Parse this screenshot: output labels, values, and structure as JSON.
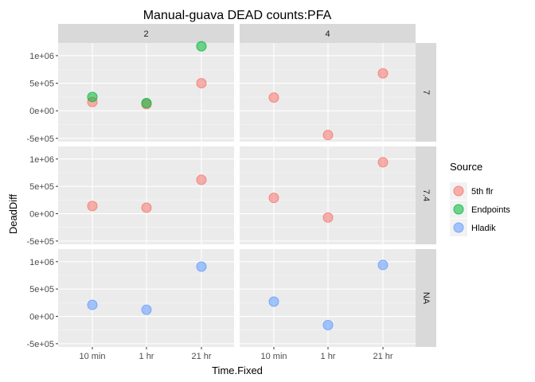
{
  "chart_data": {
    "type": "scatter",
    "title": "Manual-guava DEAD counts:PFA",
    "xlabel": "Time.Fixed",
    "ylabel": "DeadDiff",
    "x_categories": [
      "10 min",
      "1 hr",
      "21 hr"
    ],
    "y_ticks": [
      -500000,
      0,
      500000,
      1000000
    ],
    "y_tick_labels": [
      "-5e+05",
      "0e+00",
      "5e+05",
      "1e+06"
    ],
    "ylim": [
      -560000,
      1230000
    ],
    "facet_columns": [
      "2",
      "4"
    ],
    "facet_rows": [
      "7",
      "7.4",
      "NA"
    ],
    "grid": true,
    "legend": {
      "title": "Source",
      "position": "right",
      "entries": [
        {
          "name": "5th flr",
          "color": "#F8766D"
        },
        {
          "name": "Endpoints",
          "color": "#00BA38"
        },
        {
          "name": "Hladik",
          "color": "#619CFF"
        }
      ]
    },
    "series": [
      {
        "name": "5th flr",
        "color": "#F8766D",
        "points": [
          {
            "col": "2",
            "row": "7",
            "x": "10 min",
            "y": 160000
          },
          {
            "col": "2",
            "row": "7",
            "x": "1 hr",
            "y": 120000
          },
          {
            "col": "2",
            "row": "7",
            "x": "21 hr",
            "y": 500000
          },
          {
            "col": "4",
            "row": "7",
            "x": "10 min",
            "y": 240000
          },
          {
            "col": "4",
            "row": "7",
            "x": "1 hr",
            "y": -440000
          },
          {
            "col": "4",
            "row": "7",
            "x": "21 hr",
            "y": 680000
          },
          {
            "col": "2",
            "row": "7.4",
            "x": "10 min",
            "y": 140000
          },
          {
            "col": "2",
            "row": "7.4",
            "x": "1 hr",
            "y": 110000
          },
          {
            "col": "2",
            "row": "7.4",
            "x": "21 hr",
            "y": 620000
          },
          {
            "col": "4",
            "row": "7.4",
            "x": "10 min",
            "y": 290000
          },
          {
            "col": "4",
            "row": "7.4",
            "x": "1 hr",
            "y": -70000
          },
          {
            "col": "4",
            "row": "7.4",
            "x": "21 hr",
            "y": 940000
          }
        ]
      },
      {
        "name": "Endpoints",
        "color": "#00BA38",
        "points": [
          {
            "col": "2",
            "row": "7",
            "x": "10 min",
            "y": 250000
          },
          {
            "col": "2",
            "row": "7",
            "x": "1 hr",
            "y": 140000
          },
          {
            "col": "2",
            "row": "7",
            "x": "21 hr",
            "y": 1170000
          }
        ]
      },
      {
        "name": "Hladik",
        "color": "#619CFF",
        "points": [
          {
            "col": "2",
            "row": "NA",
            "x": "10 min",
            "y": 210000
          },
          {
            "col": "2",
            "row": "NA",
            "x": "1 hr",
            "y": 120000
          },
          {
            "col": "2",
            "row": "NA",
            "x": "21 hr",
            "y": 910000
          },
          {
            "col": "4",
            "row": "NA",
            "x": "10 min",
            "y": 270000
          },
          {
            "col": "4",
            "row": "NA",
            "x": "1 hr",
            "y": -160000
          },
          {
            "col": "4",
            "row": "NA",
            "x": "21 hr",
            "y": 940000
          }
        ]
      }
    ]
  }
}
